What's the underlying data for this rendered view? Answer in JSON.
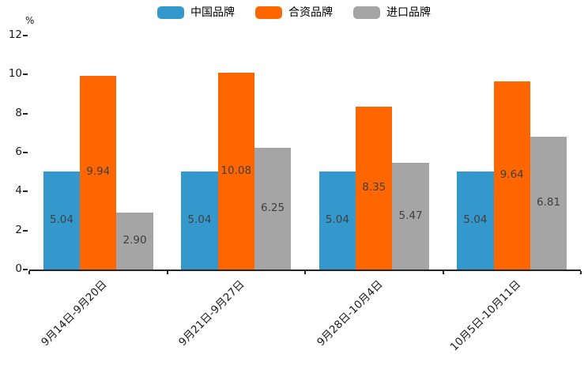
{
  "chart_data": {
    "type": "bar",
    "title": "",
    "xlabel": "",
    "ylabel": "%",
    "ylim": [
      0,
      12
    ],
    "yticks": [
      0,
      2,
      4,
      6,
      8,
      10,
      12
    ],
    "grid": false,
    "legend_position": "top",
    "value_label_decimals": 2,
    "categories": [
      "9月14日-9月20日",
      "9月21日-9月27日",
      "9月28日-10月4日",
      "10月5日-10月11日"
    ],
    "series": [
      {
        "key": "china-brand",
        "name": "中国品牌",
        "color": "#3498CC",
        "values": [
          5.04,
          5.04,
          5.04,
          5.04
        ]
      },
      {
        "key": "jv-brand",
        "name": "合资品牌",
        "color": "#FF6600",
        "values": [
          9.94,
          10.08,
          8.35,
          9.64
        ]
      },
      {
        "key": "import-brand",
        "name": "进口品牌",
        "color": "#A5A5A5",
        "values": [
          2.9,
          6.25,
          5.47,
          6.81
        ]
      }
    ]
  },
  "colors": {
    "axis": "#262626",
    "tick_text": "#1a1a1a",
    "value_text": "#404040",
    "background": "#ffffff"
  }
}
